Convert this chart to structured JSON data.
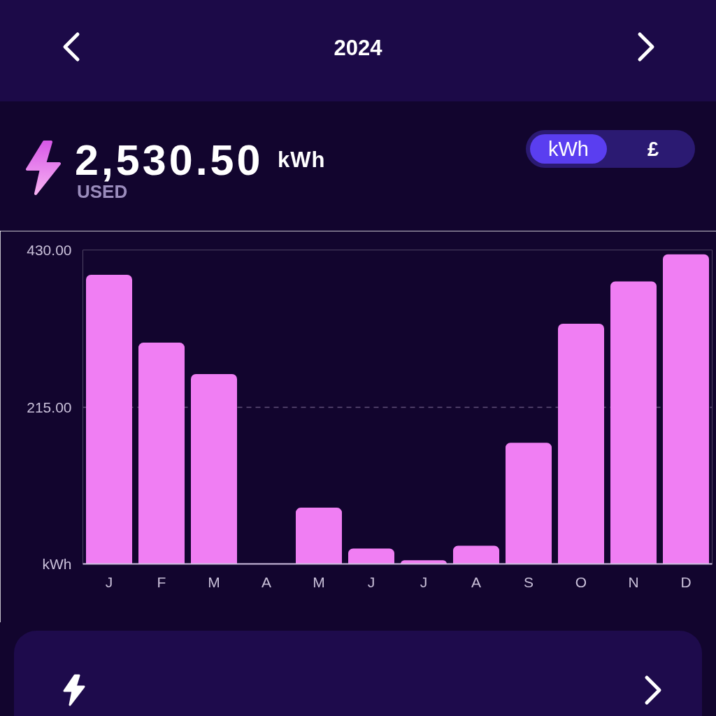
{
  "chart_data": {
    "type": "bar",
    "title": "2024",
    "categories": [
      "J",
      "F",
      "M",
      "A",
      "M",
      "J",
      "J",
      "A",
      "S",
      "O",
      "N",
      "D"
    ],
    "values": [
      396,
      303,
      260,
      0,
      77,
      21,
      5,
      25,
      166,
      329,
      387,
      424
    ],
    "color": "#f07ef3",
    "ylim": [
      0,
      430
    ],
    "yticks": [
      {
        "value": 0,
        "label": "kWh"
      },
      {
        "value": 215,
        "label": "215.00"
      },
      {
        "value": 430,
        "label": "430.00"
      }
    ],
    "grid": "y",
    "annotations": [
      "2,530.50",
      "kWh",
      "USED",
      "kWh",
      "£"
    ]
  }
}
